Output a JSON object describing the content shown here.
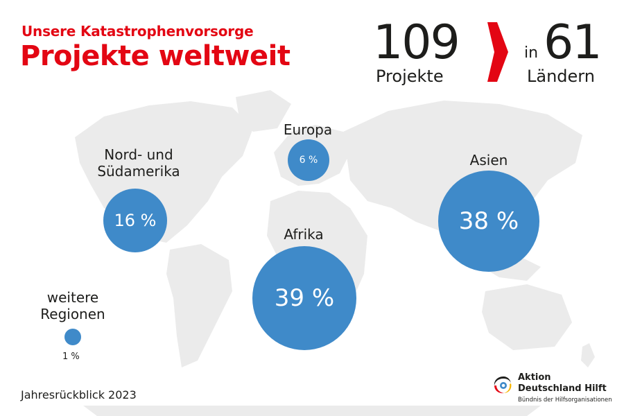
{
  "header": {
    "kicker": "Unsere Katastrophenvorsorge",
    "headline": "Projekte weltweit"
  },
  "stats": {
    "projects_number": "109",
    "projects_label": "Projekte",
    "in_label": "in",
    "countries_number": "61",
    "countries_label": "Ländern"
  },
  "regions": {
    "americas": {
      "label": "Nord- und Südamerika",
      "value": "16 %"
    },
    "europe": {
      "label": "Europa",
      "value": "6 %"
    },
    "africa": {
      "label": "Afrika",
      "value": "39 %"
    },
    "asia": {
      "label": "Asien",
      "value": "38 %"
    },
    "other": {
      "label": "weitere Regionen",
      "value": "1 %"
    }
  },
  "footer": {
    "year_label": "Jahresrückblick 2023",
    "logo_title": "Aktion Deutschland Hilft",
    "logo_subtitle": "Bündnis der Hilfsorganisationen"
  },
  "colors": {
    "brand_red": "#e30613",
    "bubble_blue": "#3f8ac9",
    "map_gray": "#ebebeb",
    "text": "#1d1d1b"
  }
}
